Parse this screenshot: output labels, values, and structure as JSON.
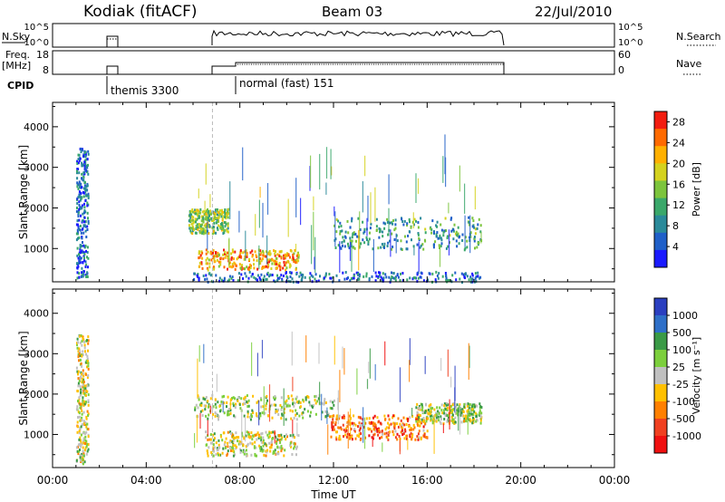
{
  "header": {
    "station": "Kodiak (fitACF)",
    "beam": "Beam 03",
    "date": "22/Jul/2010"
  },
  "status_panels": {
    "nsky_label": "N.Sky",
    "nsky_ticks": [
      "10^5",
      "10^0"
    ],
    "nsearch_label": "N.Search",
    "freq_label_1": "Freq.",
    "freq_label_2": "[MHz]",
    "freq_ticks": [
      "18",
      "8"
    ],
    "nave_label": "Nave",
    "nave_ticks": [
      "60",
      "0"
    ],
    "cpid_label": "CPID",
    "cpid_1": "themis 3300",
    "cpid_2": "normal (fast) 151"
  },
  "chart_data": [
    {
      "type": "heatmap",
      "variable": "power",
      "xlabel": "Time UT",
      "ylabel": "Slant Range [km]",
      "xlim": [
        0,
        24
      ],
      "ylim": [
        180,
        4600
      ],
      "x_ticks": [
        "00:00",
        "04:00",
        "08:00",
        "12:00",
        "16:00",
        "20:00",
        "00:00"
      ],
      "y_ticks": [
        1000,
        2000,
        3000,
        4000
      ],
      "colorbar": {
        "label": "Power [dB]",
        "ticks": [
          4,
          8,
          12,
          16,
          20,
          24,
          28
        ],
        "range": [
          0,
          30
        ],
        "colors": [
          "#1a1aff",
          "#1f5fc8",
          "#2a8a9a",
          "#3aa86a",
          "#7cc43c",
          "#d4d21e",
          "#ffb000",
          "#ff6a00",
          "#f21d10"
        ]
      },
      "features": [
        {
          "t": [
            1.0,
            1.5
          ],
          "r": [
            300,
            3500
          ],
          "level": 0.2
        },
        {
          "t": [
            5.8,
            7.5
          ],
          "r": [
            1400,
            2000
          ],
          "level": 0.5
        },
        {
          "t": [
            6.2,
            10.5
          ],
          "r": [
            500,
            1000
          ],
          "level": 0.75
        },
        {
          "t": [
            12.0,
            18.3
          ],
          "r": [
            1000,
            1800
          ],
          "level": 0.35
        },
        {
          "t": [
            6.0,
            18.3
          ],
          "r": [
            200,
            450
          ],
          "level": 0.2
        }
      ]
    },
    {
      "type": "heatmap",
      "variable": "velocity",
      "xlabel": "Time UT",
      "ylabel": "Slant Range [km]",
      "xlim": [
        0,
        24
      ],
      "ylim": [
        180,
        4600
      ],
      "x_ticks": [
        "00:00",
        "04:00",
        "08:00",
        "12:00",
        "16:00",
        "20:00",
        "00:00"
      ],
      "y_ticks": [
        1000,
        2000,
        3000,
        4000
      ],
      "colorbar": {
        "label": "Velocity [m s⁻¹]",
        "ticks": [
          1000,
          500,
          100,
          25,
          -25,
          -100,
          -500,
          -1000
        ],
        "colors": [
          "#2a3fc0",
          "#2e6fc8",
          "#3a9a46",
          "#7ccf3c",
          "#c0c0c0",
          "#ffc000",
          "#ff8000",
          "#f04020",
          "#f01010"
        ]
      },
      "features": [
        {
          "t": [
            1.0,
            1.5
          ],
          "r": [
            300,
            3500
          ],
          "level": 0.5
        },
        {
          "t": [
            6.0,
            12.0
          ],
          "r": [
            1400,
            2000
          ],
          "level": 0.45
        },
        {
          "t": [
            6.5,
            10.5
          ],
          "r": [
            500,
            1100
          ],
          "level": 0.5
        },
        {
          "t": [
            11.8,
            16.0
          ],
          "r": [
            900,
            1500
          ],
          "level": 0.75
        },
        {
          "t": [
            15.5,
            18.3
          ],
          "r": [
            1300,
            1800
          ],
          "level": 0.45
        }
      ]
    }
  ]
}
